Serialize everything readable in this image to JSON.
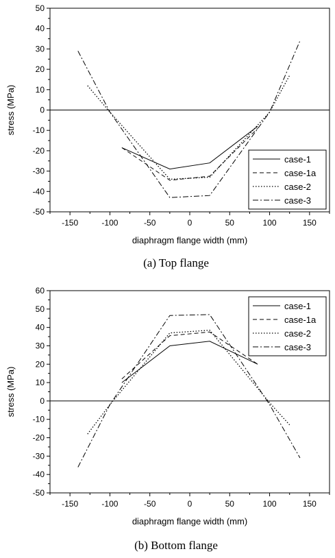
{
  "chart_data": [
    {
      "type": "line",
      "caption": "(a) Top flange",
      "xlabel": "diaphragm flange width (mm)",
      "ylabel": "stress (MPa)",
      "xlim": [
        -175,
        175
      ],
      "ylim": [
        -50,
        50
      ],
      "xticks": [
        -150,
        -100,
        -50,
        0,
        50,
        100,
        150
      ],
      "yticks": [
        50,
        40,
        30,
        20,
        10,
        0,
        -10,
        -20,
        -30,
        -40,
        -50
      ],
      "legend_position": "bottom-right",
      "series": [
        {
          "name": "case-1",
          "dash": "solid",
          "x": [
            -85,
            -25,
            25,
            85
          ],
          "y": [
            -18.5,
            -29,
            -26,
            -8
          ]
        },
        {
          "name": "case-1a",
          "dash": "dashed",
          "x": [
            -85,
            -25,
            25,
            85
          ],
          "y": [
            -18.5,
            -34.5,
            -32.5,
            -9
          ]
        },
        {
          "name": "case-2",
          "dash": "dotted",
          "x": [
            -128,
            -100,
            -25,
            25,
            100,
            125
          ],
          "y": [
            12,
            -1,
            -34,
            -33,
            -1,
            17
          ]
        },
        {
          "name": "case-3",
          "dash": "dashdot",
          "x": [
            -140,
            -100,
            -25,
            25,
            100,
            138
          ],
          "y": [
            29,
            -1,
            -43,
            -42,
            -1,
            34
          ]
        }
      ]
    },
    {
      "type": "line",
      "caption": "(b) Bottom flange",
      "xlabel": "diaphragm flange width (mm)",
      "ylabel": "stress (MPa)",
      "xlim": [
        -175,
        175
      ],
      "ylim": [
        -50,
        60
      ],
      "xticks": [
        -150,
        -100,
        -50,
        0,
        50,
        100,
        150
      ],
      "yticks": [
        60,
        50,
        40,
        30,
        20,
        10,
        0,
        -10,
        -20,
        -30,
        -40,
        -50
      ],
      "legend_position": "top-right",
      "series": [
        {
          "name": "case-1",
          "dash": "solid",
          "x": [
            -85,
            -25,
            25,
            85
          ],
          "y": [
            10,
            30,
            32.5,
            20
          ]
        },
        {
          "name": "case-1a",
          "dash": "dashed",
          "x": [
            -85,
            -25,
            25,
            85
          ],
          "y": [
            12,
            35.5,
            37.5,
            20
          ]
        },
        {
          "name": "case-2",
          "dash": "dotted",
          "x": [
            -128,
            -100,
            -25,
            25,
            100,
            125
          ],
          "y": [
            -18,
            -2,
            37,
            38.5,
            -1,
            -13
          ]
        },
        {
          "name": "case-3",
          "dash": "dashdot",
          "x": [
            -140,
            -100,
            -25,
            25,
            100,
            138
          ],
          "y": [
            -36,
            -2,
            46.5,
            47,
            -2,
            -31
          ]
        }
      ]
    }
  ]
}
